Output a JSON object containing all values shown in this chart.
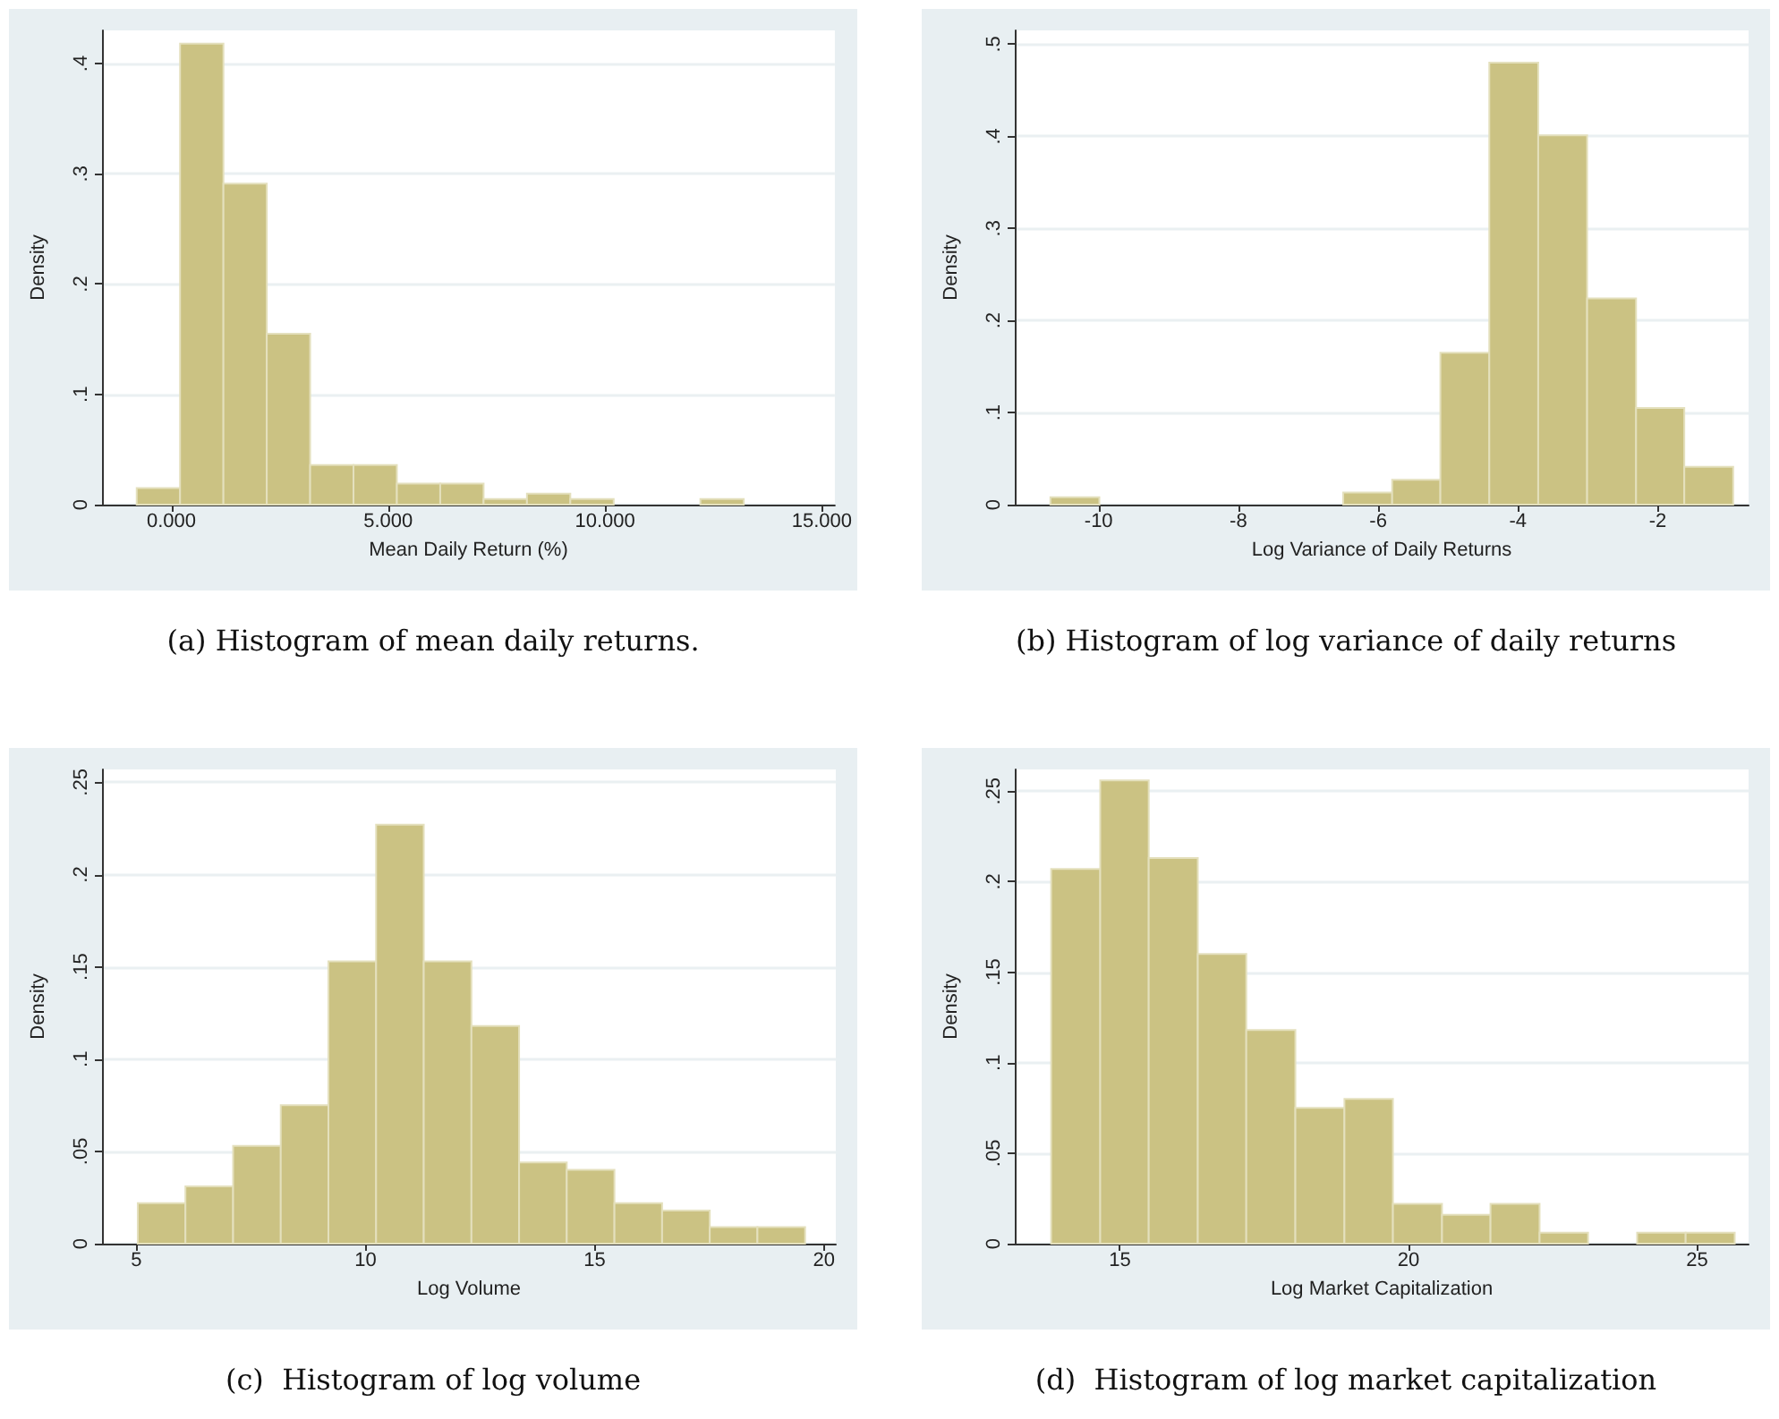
{
  "chart_data": [
    {
      "type": "histogram",
      "title": "(a) Histogram of mean daily returns.",
      "xlabel": "Mean Daily Return (%)",
      "ylabel": "Density",
      "color": "#cbc283",
      "grid": "y",
      "bins": [
        -0.8,
        0.2,
        1.2,
        2.2,
        3.2,
        4.2,
        5.2,
        6.2,
        7.2,
        8.2,
        9.2,
        10.2,
        11.2,
        12.2,
        13.2
      ],
      "values": [
        0.015,
        0.418,
        0.291,
        0.155,
        0.036,
        0.036,
        0.019,
        0.019,
        0.005,
        0.01,
        0.005,
        0,
        0,
        0.005
      ],
      "xlim": [
        -1.6,
        15.3
      ],
      "xticks": [
        {
          "value": 0,
          "label": "0.000"
        },
        {
          "value": 5,
          "label": "5.000"
        },
        {
          "value": 10,
          "label": "10.000"
        },
        {
          "value": 15,
          "label": "15.000"
        }
      ],
      "ylim": [
        0,
        0.43
      ],
      "yticks": [
        {
          "value": 0,
          "label": "0"
        },
        {
          "value": 0.1,
          "label": ".1"
        },
        {
          "value": 0.2,
          "label": ".2"
        },
        {
          "value": 0.3,
          "label": ".3"
        },
        {
          "value": 0.4,
          "label": ".4"
        }
      ]
    },
    {
      "type": "histogram",
      "title": "(b) Histogram of log variance of daily returns",
      "xlabel": "Log Variance of Daily Returns",
      "ylabel": "Density",
      "color": "#cbc283",
      "grid": "y",
      "bins": [
        -10.69,
        -9.99,
        -6.5,
        -5.8,
        -5.11,
        -4.41,
        -3.71,
        -3.01,
        -2.31,
        -1.62,
        -0.92
      ],
      "values": [
        0.008,
        0,
        0.013,
        0.027,
        0.165,
        0.48,
        0.401,
        0.224,
        0.105,
        0.041
      ],
      "xlim": [
        -11.2,
        -0.7
      ],
      "xticks": [
        -10,
        -8,
        -6,
        -4,
        -2
      ],
      "ylim": [
        0,
        0.515
      ],
      "yticks": [
        {
          "value": 0,
          "label": "0"
        },
        {
          "value": 0.1,
          "label": ".1"
        },
        {
          "value": 0.2,
          "label": ".2"
        },
        {
          "value": 0.3,
          "label": ".3"
        },
        {
          "value": 0.4,
          "label": ".4"
        },
        {
          "value": 0.5,
          "label": ".5"
        }
      ]
    },
    {
      "type": "histogram",
      "title": "(c)  Histogram of log volume",
      "xlabel": "Log Volume",
      "ylabel": "Density",
      "color": "#cbc283",
      "grid": "y",
      "bins": [
        5.03,
        6.07,
        7.11,
        8.15,
        9.19,
        10.23,
        11.27,
        12.31,
        13.35,
        14.39,
        15.43,
        16.47,
        17.51,
        18.55,
        19.59
      ],
      "values": [
        0.022,
        0.031,
        0.053,
        0.075,
        0.153,
        0.227,
        0.153,
        0.118,
        0.044,
        0.04,
        0.022,
        0.018,
        0.009,
        0.009
      ],
      "xlim": [
        4.25,
        20.26
      ],
      "xticks": [
        5,
        10,
        15,
        20
      ],
      "ylim": [
        0,
        0.257
      ],
      "yticks": [
        {
          "value": 0,
          "label": "0"
        },
        {
          "value": 0.05,
          "label": ".05"
        },
        {
          "value": 0.1,
          "label": ".1"
        },
        {
          "value": 0.15,
          "label": ".15"
        },
        {
          "value": 0.2,
          "label": ".2"
        },
        {
          "value": 0.25,
          "label": ".25"
        }
      ]
    },
    {
      "type": "histogram",
      "title": "(d)  Histogram of log market capitalization",
      "xlabel": "Log Market Capitalization",
      "ylabel": "Density",
      "color": "#cbc283",
      "grid": "y",
      "bins": [
        13.81,
        14.66,
        15.5,
        16.35,
        17.19,
        18.04,
        18.89,
        19.73,
        20.58,
        21.42,
        22.27,
        23.11,
        23.96,
        24.8,
        25.65
      ],
      "values": [
        0.207,
        0.256,
        0.213,
        0.16,
        0.118,
        0.075,
        0.08,
        0.022,
        0.016,
        0.022,
        0.006,
        0,
        0.006,
        0.006
      ],
      "xlim": [
        13.18,
        25.89
      ],
      "xticks": [
        15,
        20,
        25
      ],
      "ylim": [
        0,
        0.262
      ],
      "yticks": [
        {
          "value": 0,
          "label": "0"
        },
        {
          "value": 0.05,
          "label": ".05"
        },
        {
          "value": 0.1,
          "label": ".1"
        },
        {
          "value": 0.15,
          "label": ".15"
        },
        {
          "value": 0.2,
          "label": ".2"
        },
        {
          "value": 0.25,
          "label": ".25"
        }
      ]
    }
  ]
}
